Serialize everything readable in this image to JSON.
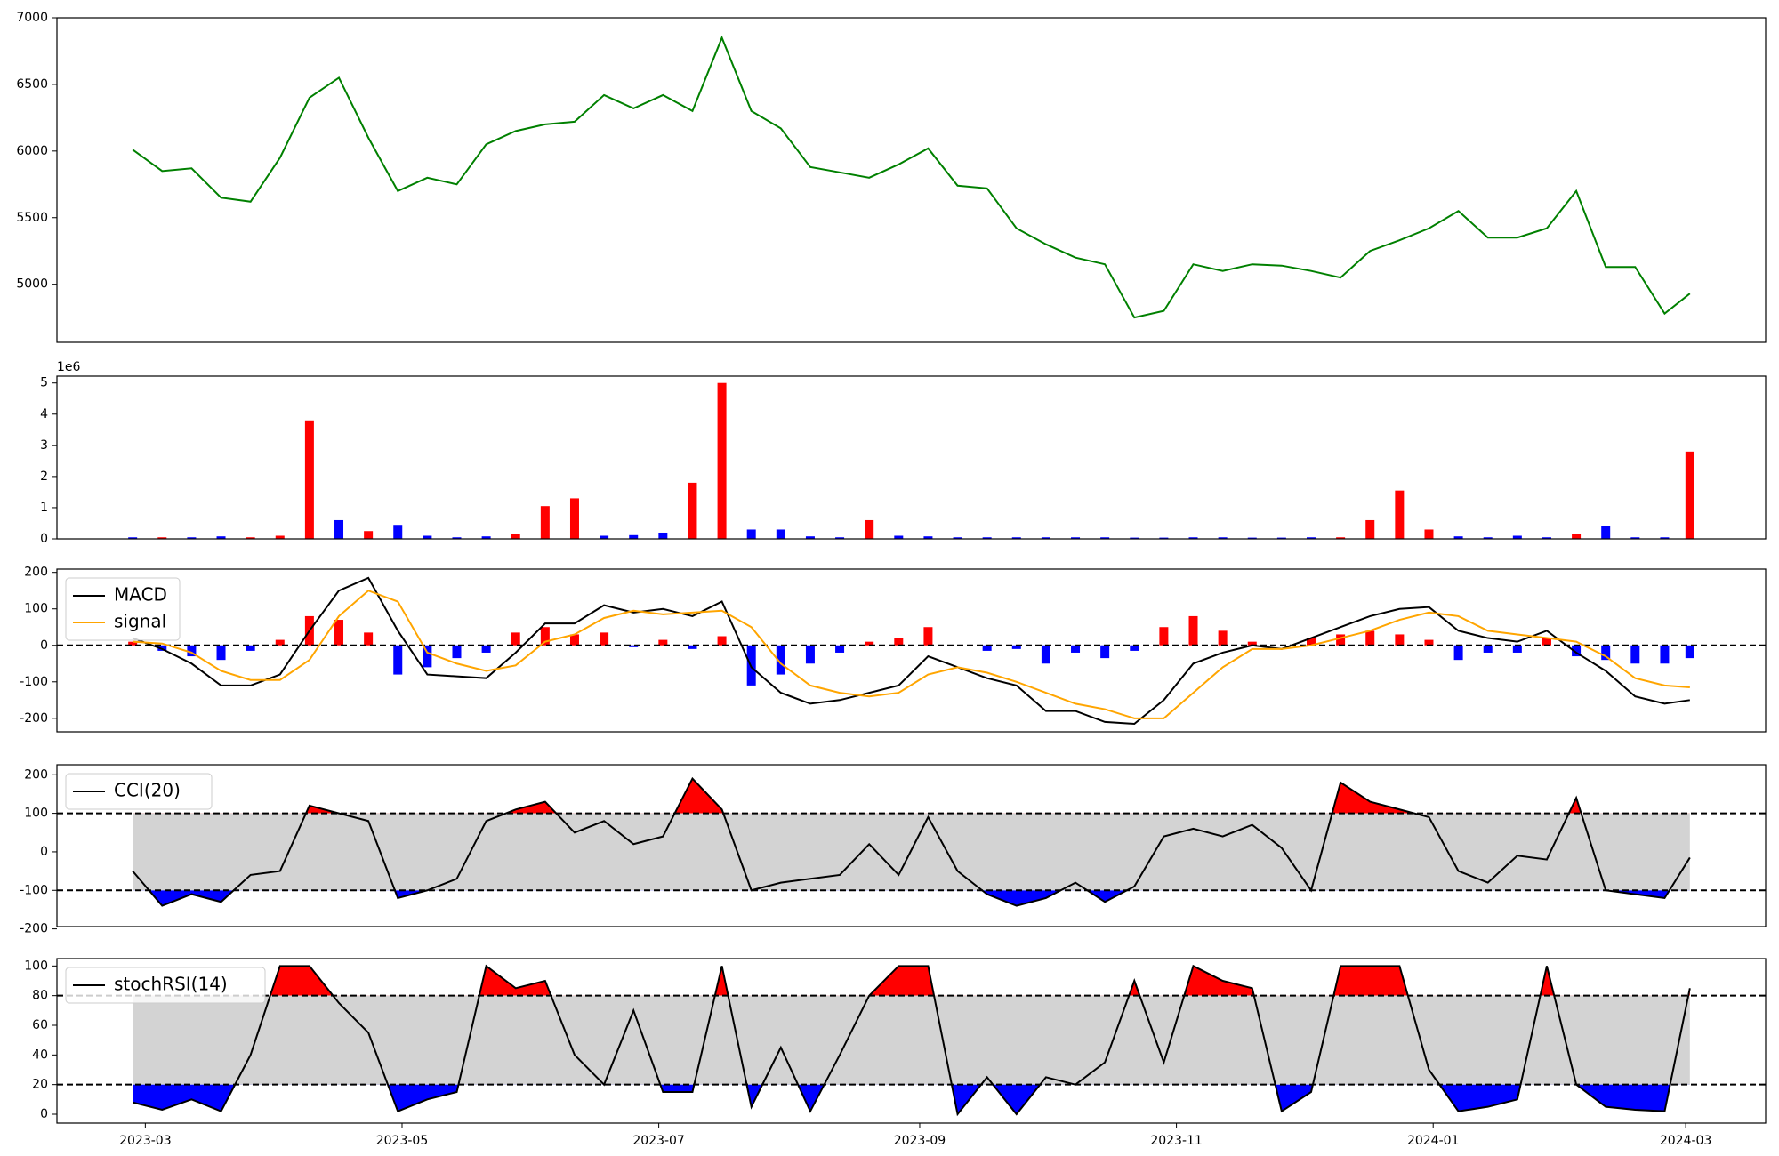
{
  "chart_data": [
    {
      "type": "line",
      "xlim": [
        -21,
        385
      ],
      "ylim": [
        4564,
        7000
      ],
      "yticks": [
        5000,
        5500,
        6000,
        6500,
        7000
      ],
      "x": [
        -3,
        4,
        11,
        18,
        25,
        32,
        39,
        46,
        53,
        60,
        67,
        74,
        81,
        88,
        95,
        102,
        109,
        116,
        123,
        130,
        137,
        144,
        151,
        158,
        165,
        172,
        179,
        186,
        193,
        200,
        207,
        214,
        221,
        228,
        235,
        242,
        249,
        256,
        263,
        270,
        277,
        284,
        291,
        298,
        305,
        312,
        319,
        326,
        333,
        340,
        347,
        354,
        361,
        367
      ],
      "series": [
        {
          "color": "green",
          "values": [
            6010,
            5850,
            5870,
            5650,
            5620,
            5950,
            6400,
            6550,
            6100,
            5700,
            5800,
            5750,
            6050,
            6150,
            6200,
            6220,
            6420,
            6320,
            6420,
            6300,
            6850,
            6300,
            6170,
            5880,
            5840,
            5800,
            5900,
            6020,
            5740,
            5720,
            5420,
            5300,
            5200,
            5150,
            4750,
            4800,
            5150,
            5100,
            5150,
            5140,
            5100,
            5050,
            5250,
            5330,
            5420,
            5550,
            5350,
            5350,
            5420,
            5700,
            5130,
            5130,
            4780,
            4930
          ]
        }
      ]
    },
    {
      "type": "bar",
      "xlim": [
        -21,
        385
      ],
      "ylim": [
        0,
        5.22
      ],
      "yticks": [
        0,
        1,
        2,
        3,
        4,
        5
      ],
      "y_offset_label": "1e6",
      "x": [
        -3,
        4,
        11,
        18,
        25,
        32,
        39,
        46,
        53,
        60,
        67,
        74,
        81,
        88,
        95,
        102,
        109,
        116,
        123,
        130,
        137,
        144,
        151,
        158,
        165,
        172,
        179,
        186,
        193,
        200,
        207,
        214,
        221,
        228,
        235,
        242,
        249,
        256,
        263,
        270,
        277,
        284,
        291,
        298,
        305,
        312,
        319,
        326,
        333,
        340,
        347,
        354,
        361,
        367
      ],
      "values": [
        0.05,
        0.05,
        0.05,
        0.08,
        0.05,
        0.1,
        3.8,
        0.6,
        0.25,
        0.45,
        0.1,
        0.05,
        0.08,
        0.15,
        1.05,
        1.3,
        0.1,
        0.12,
        0.2,
        1.8,
        5.0,
        0.3,
        0.3,
        0.08,
        0.05,
        0.6,
        0.1,
        0.08,
        0.05,
        0.05,
        0.05,
        0.05,
        0.05,
        0.05,
        0.04,
        0.04,
        0.05,
        0.05,
        0.04,
        0.04,
        0.05,
        0.05,
        0.6,
        1.55,
        0.3,
        0.08,
        0.05,
        0.1,
        0.05,
        0.15,
        0.4,
        0.05,
        0.05,
        2.8
      ],
      "colors": [
        "blue",
        "red",
        "blue",
        "blue",
        "red",
        "red",
        "red",
        "blue",
        "red",
        "blue",
        "blue",
        "blue",
        "blue",
        "red",
        "red",
        "red",
        "blue",
        "blue",
        "blue",
        "red",
        "red",
        "blue",
        "blue",
        "blue",
        "blue",
        "red",
        "blue",
        "blue",
        "blue",
        "blue",
        "blue",
        "blue",
        "blue",
        "blue",
        "blue",
        "blue",
        "blue",
        "blue",
        "blue",
        "blue",
        "blue",
        "red",
        "red",
        "red",
        "red",
        "blue",
        "blue",
        "blue",
        "blue",
        "red",
        "blue",
        "blue",
        "blue",
        "red"
      ]
    },
    {
      "type": "macd",
      "xlim": [
        -21,
        385
      ],
      "ylim": [
        -237,
        209
      ],
      "yticks": [
        -200,
        -100,
        0,
        100,
        200
      ],
      "hlines": [
        0
      ],
      "legend": "upper left",
      "x": [
        -3,
        4,
        11,
        18,
        25,
        32,
        39,
        46,
        53,
        60,
        67,
        74,
        81,
        88,
        95,
        102,
        109,
        116,
        123,
        130,
        137,
        144,
        151,
        158,
        165,
        172,
        179,
        186,
        193,
        200,
        207,
        214,
        221,
        228,
        235,
        242,
        249,
        256,
        263,
        270,
        277,
        284,
        291,
        298,
        305,
        312,
        319,
        326,
        333,
        340,
        347,
        354,
        361,
        367
      ],
      "series": [
        {
          "name": "MACD",
          "color": "black",
          "values": [
            20,
            -10,
            -50,
            -110,
            -110,
            -80,
            40,
            150,
            185,
            40,
            -80,
            -85,
            -90,
            -20,
            60,
            60,
            110,
            90,
            100,
            80,
            120,
            -60,
            -130,
            -160,
            -150,
            -130,
            -110,
            -30,
            -60,
            -90,
            -110,
            -180,
            -180,
            -210,
            -215,
            -150,
            -50,
            -20,
            0,
            -10,
            20,
            50,
            80,
            100,
            105,
            40,
            20,
            10,
            40,
            -20,
            -70,
            -140,
            -160,
            -150
          ]
        },
        {
          "name": "signal",
          "color": "orange",
          "values": [
            10,
            5,
            -20,
            -70,
            -95,
            -95,
            -40,
            80,
            150,
            120,
            -20,
            -50,
            -70,
            -55,
            10,
            30,
            75,
            95,
            85,
            90,
            95,
            50,
            -50,
            -110,
            -130,
            -140,
            -130,
            -80,
            -60,
            -75,
            -100,
            -130,
            -160,
            -175,
            -200,
            -200,
            -130,
            -60,
            -10,
            -10,
            0,
            20,
            40,
            70,
            90,
            80,
            40,
            30,
            20,
            10,
            -30,
            -90,
            -110,
            -115
          ]
        }
      ],
      "hist": {
        "up_color": "red",
        "down_color": "blue",
        "values": [
          10,
          -15,
          -30,
          -40,
          -15,
          15,
          80,
          70,
          35,
          -80,
          -60,
          -35,
          -20,
          35,
          50,
          30,
          35,
          -5,
          15,
          -10,
          25,
          -110,
          -80,
          -50,
          -20,
          10,
          20,
          50,
          0,
          -15,
          -10,
          -50,
          -20,
          -35,
          -15,
          50,
          80,
          40,
          10,
          0,
          20,
          30,
          40,
          30,
          15,
          -40,
          -20,
          -20,
          20,
          -30,
          -40,
          -50,
          -50,
          -35
        ]
      }
    },
    {
      "type": "band",
      "xlim": [
        -21,
        385
      ],
      "ylim": [
        -194,
        226
      ],
      "yticks": [
        -200,
        -100,
        0,
        100,
        200
      ],
      "hlines": [
        -100,
        100
      ],
      "legend": "upper left",
      "band_fill": "lightgray",
      "upper_fill": "red",
      "lower_fill": "blue",
      "x": [
        -3,
        4,
        11,
        18,
        25,
        32,
        39,
        46,
        53,
        60,
        67,
        74,
        81,
        88,
        95,
        102,
        109,
        116,
        123,
        130,
        137,
        144,
        151,
        158,
        165,
        172,
        179,
        186,
        193,
        200,
        207,
        214,
        221,
        228,
        235,
        242,
        249,
        256,
        263,
        270,
        277,
        284,
        291,
        298,
        305,
        312,
        319,
        326,
        333,
        340,
        347,
        354,
        361,
        367
      ],
      "series": [
        {
          "name": "CCI(20)",
          "color": "black",
          "values": [
            -50,
            -140,
            -110,
            -130,
            -60,
            -50,
            120,
            100,
            80,
            -120,
            -100,
            -70,
            80,
            110,
            130,
            50,
            80,
            20,
            40,
            190,
            110,
            -100,
            -80,
            -70,
            -60,
            20,
            -60,
            90,
            -50,
            -110,
            -140,
            -120,
            -80,
            -130,
            -90,
            40,
            60,
            40,
            70,
            10,
            -100,
            180,
            130,
            110,
            90,
            -50,
            -80,
            -10,
            -20,
            140,
            -100,
            -110,
            -120,
            -15
          ]
        }
      ]
    },
    {
      "type": "band",
      "xlim": [
        -21,
        385
      ],
      "ylim": [
        -6,
        105
      ],
      "yticks": [
        0,
        20,
        40,
        60,
        80,
        100
      ],
      "hlines": [
        20,
        80
      ],
      "legend": "upper left",
      "band_fill": "lightgray",
      "upper_fill": "red",
      "lower_fill": "blue",
      "xticks": [
        {
          "value": 0,
          "label": "2023-03"
        },
        {
          "value": 61,
          "label": "2023-05"
        },
        {
          "value": 122,
          "label": "2023-07"
        },
        {
          "value": 184,
          "label": "2023-09"
        },
        {
          "value": 245,
          "label": "2023-11"
        },
        {
          "value": 306,
          "label": "2024-01"
        },
        {
          "value": 366,
          "label": "2024-03"
        }
      ],
      "x": [
        -3,
        4,
        11,
        18,
        25,
        32,
        39,
        46,
        53,
        60,
        67,
        74,
        81,
        88,
        95,
        102,
        109,
        116,
        123,
        130,
        137,
        144,
        151,
        158,
        165,
        172,
        179,
        186,
        193,
        200,
        207,
        214,
        221,
        228,
        235,
        242,
        249,
        256,
        263,
        270,
        277,
        284,
        291,
        298,
        305,
        312,
        319,
        326,
        333,
        340,
        347,
        354,
        361,
        367
      ],
      "series": [
        {
          "name": "stochRSI(14)",
          "color": "black",
          "values": [
            8,
            3,
            10,
            2,
            40,
            100,
            100,
            75,
            55,
            2,
            10,
            15,
            100,
            85,
            90,
            40,
            20,
            70,
            15,
            15,
            100,
            5,
            45,
            2,
            40,
            80,
            100,
            100,
            0,
            25,
            0,
            25,
            20,
            35,
            90,
            35,
            100,
            90,
            85,
            2,
            15,
            100,
            100,
            100,
            30,
            2,
            5,
            10,
            100,
            20,
            5,
            3,
            2,
            85
          ]
        }
      ]
    }
  ]
}
